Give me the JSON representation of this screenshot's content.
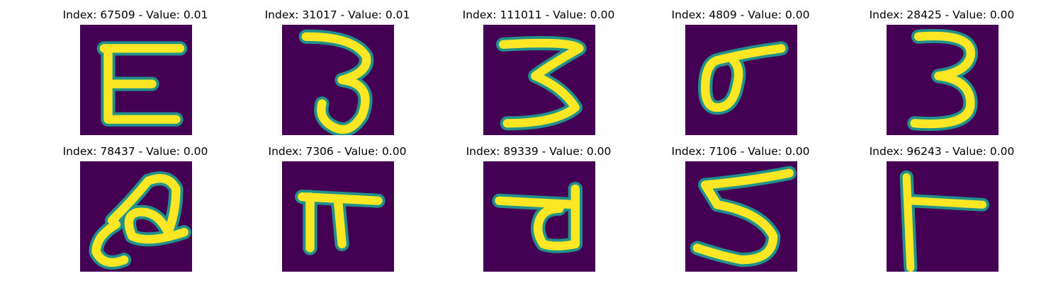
{
  "colors": {
    "background": "#440154",
    "stroke_edge": "#21918c",
    "stroke_mid": "#5ec962",
    "stroke_core": "#fde725"
  },
  "tiles": [
    {
      "title": "Index: 67509 - Value: 0.01",
      "digit": "E-like glyph"
    },
    {
      "title": "Index: 31017 - Value: 0.01",
      "digit": "3"
    },
    {
      "title": "Index: 111011 - Value: 0.00",
      "digit": "3 (wavy)"
    },
    {
      "title": "Index: 4809 - Value: 0.00",
      "digit": "loop glyph"
    },
    {
      "title": "Index: 28425 - Value: 0.00",
      "digit": "3"
    },
    {
      "title": "Index: 78437 - Value: 0.00",
      "digit": "curly glyph"
    },
    {
      "title": "Index: 7306 - Value: 0.00",
      "digit": "pi-like glyph"
    },
    {
      "title": "Index: 89339 - Value: 0.00",
      "digit": "loop glyph"
    },
    {
      "title": "Index: 7106 - Value: 0.00",
      "digit": "5"
    },
    {
      "title": "Index: 96243 - Value: 0.00",
      "digit": "T-like glyph"
    }
  ]
}
